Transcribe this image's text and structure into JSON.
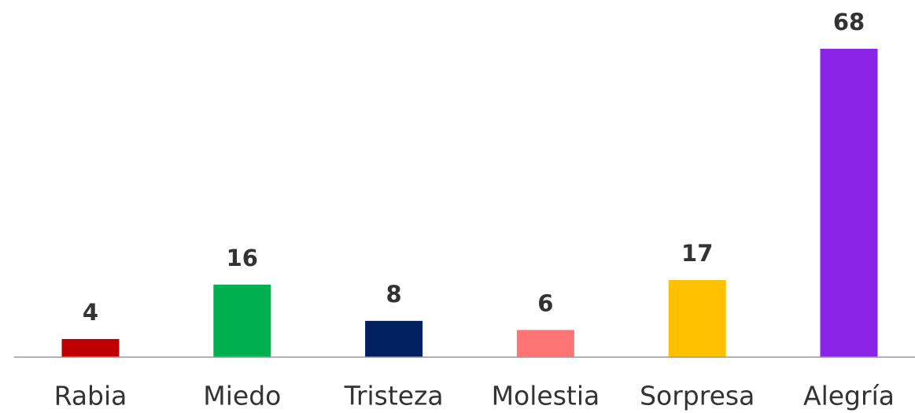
{
  "chart_data": {
    "type": "bar",
    "categories": [
      "Rabia",
      "Miedo",
      "Tristeza",
      "Molestia",
      "Sorpresa",
      "Alegría"
    ],
    "values": [
      4,
      16,
      8,
      6,
      17,
      68
    ],
    "colors": [
      "#c00000",
      "#00b050",
      "#002060",
      "#ff7575",
      "#ffc000",
      "#8a25e8"
    ]
  }
}
